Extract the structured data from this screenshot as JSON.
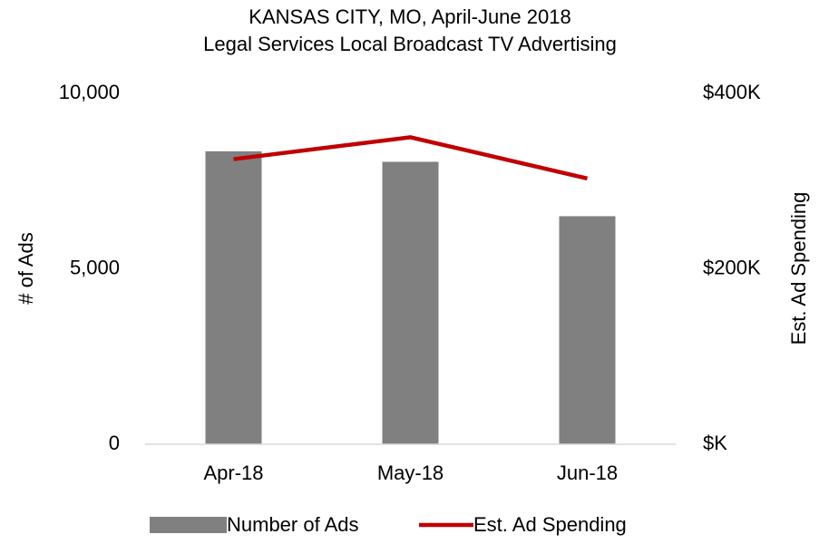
{
  "chart_data": {
    "type": "bar_line",
    "title": "KANSAS CITY, MO, April-June 2018",
    "subtitle": "Legal Services Local Broadcast TV Advertising",
    "y_label": "# of Ads",
    "y2_label": "Est. Ad Spending",
    "categories": [
      "Apr-18",
      "May-18",
      "Jun-18"
    ],
    "series": [
      {
        "name": "Number of Ads",
        "type": "bar",
        "color": "#808080",
        "values": [
          8350,
          8050,
          6500
        ]
      },
      {
        "name": "Est. Ad Spending",
        "type": "line",
        "axis": "y2",
        "color": "#c00000",
        "values": [
          325000,
          350000,
          303000
        ]
      }
    ],
    "ylim": [
      0,
      10000
    ],
    "yticks": [
      0,
      {
        "value": 5000,
        "label": "5,000"
      },
      {
        "value": 10000,
        "label": "10,000"
      }
    ],
    "y2lim": [
      0,
      400000
    ],
    "y2ticks": [
      {
        "value": 0,
        "label": "$K"
      },
      {
        "value": 200000,
        "label": "$200K"
      },
      {
        "value": 400000,
        "label": "$400K"
      }
    ],
    "legend": "bottom"
  }
}
